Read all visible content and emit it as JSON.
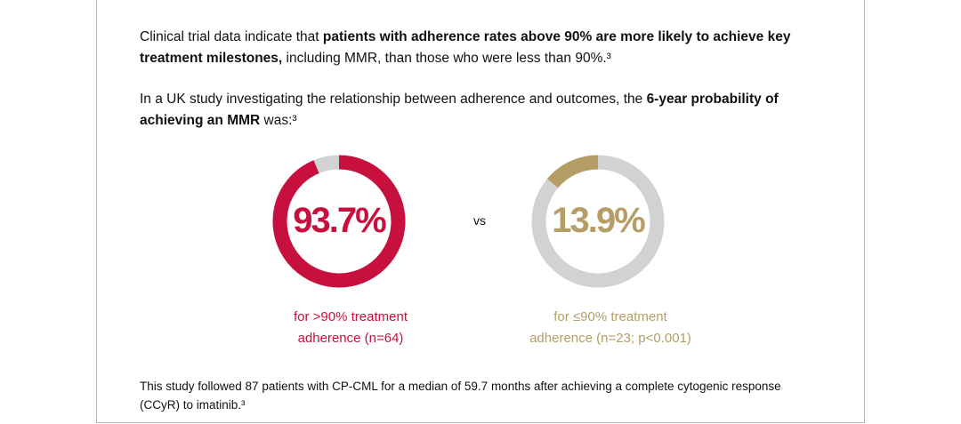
{
  "intro": {
    "p1_a": "Clinical trial data indicate that ",
    "p1_b": "patients with adherence rates above 90% are more likely to achieve key treatment milestones,",
    "p1_c": " including MMR, than those who were less than 90%.³",
    "p2_a": "In a UK study investigating the relationship between adherence and outcomes, the ",
    "p2_b": "6-year probability of achieving an MMR",
    "p2_c": " was:³"
  },
  "chart_data": {
    "type": "pie",
    "variant": "donut",
    "separator": "vs",
    "track_color": "#d1d2d3",
    "series": [
      {
        "value": 93.7,
        "label": "93.7%",
        "caption_1": "for >90% treatment",
        "caption_2": "adherence (n=64)",
        "color": "#c8103e"
      },
      {
        "value": 13.9,
        "label": "13.9%",
        "caption_1": "for ≤90% treatment",
        "caption_2": "adherence (n=23; p<0.001)",
        "color": "#b59d66"
      }
    ]
  },
  "footnote": "This study followed 87 patients with CP-CML for a median of 59.7 months after achieving a complete cytogenic response (CCyR) to imatinib.³"
}
